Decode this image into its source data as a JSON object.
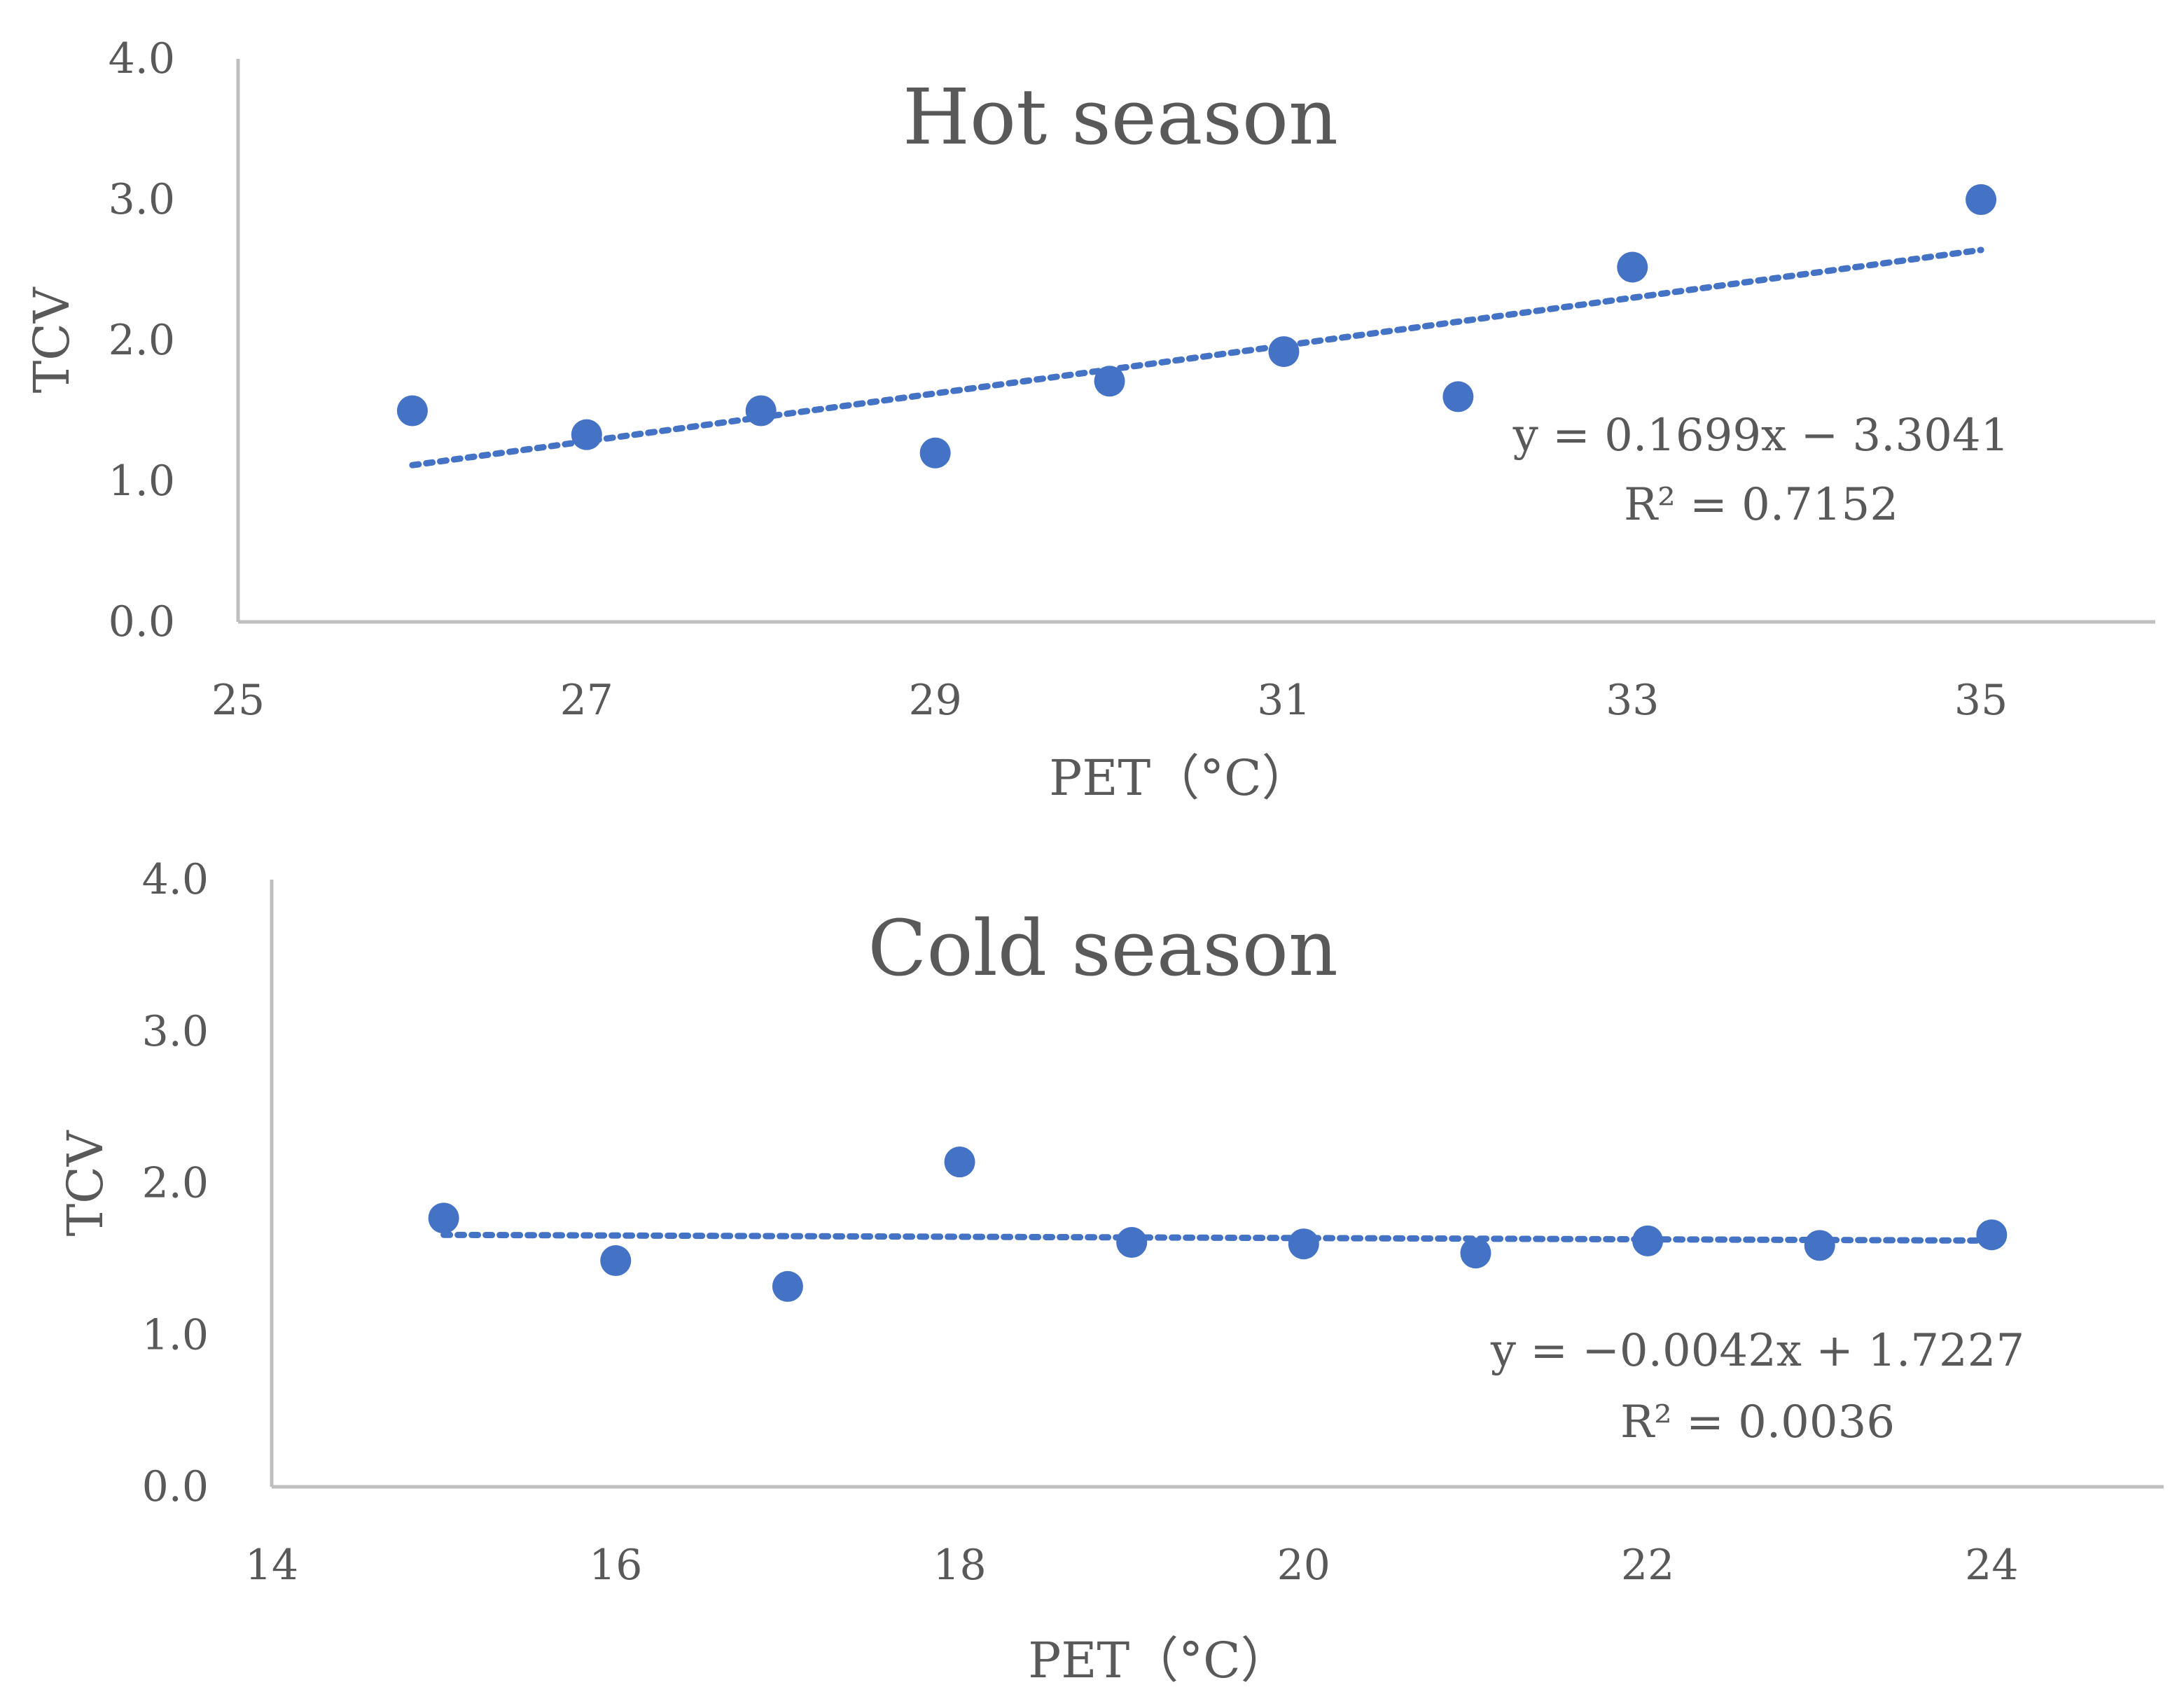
{
  "chart_data": [
    {
      "type": "scatter",
      "title": "Hot season",
      "xlabel": "PET（°C）",
      "ylabel": "TCV",
      "xlim": [
        25,
        36
      ],
      "ylim": [
        0,
        4
      ],
      "x_ticks": [
        "25",
        "27",
        "29",
        "31",
        "33",
        "35"
      ],
      "x_tick_values": [
        25,
        27,
        29,
        31,
        33,
        35
      ],
      "y_ticks": [
        "0.0",
        "1.0",
        "2.0",
        "3.0",
        "4.0"
      ],
      "y_tick_values": [
        0,
        1,
        2,
        3,
        4
      ],
      "series": [
        {
          "name": "TCV",
          "x": [
            26,
            27,
            28,
            29,
            30,
            31,
            32,
            33,
            35
          ],
          "y": [
            1.5,
            1.33,
            1.5,
            1.2,
            1.71,
            1.92,
            1.6,
            2.52,
            3.0
          ]
        }
      ],
      "trendline": {
        "type": "linear",
        "slope": 0.1699,
        "intercept": -3.3041,
        "x_range": [
          26,
          35
        ],
        "equation": "y = 0.1699x − 3.3041",
        "r_squared": "R² = 0.7152"
      },
      "grid": false
    },
    {
      "type": "scatter",
      "title": "Cold season",
      "xlabel": "PET（°C）",
      "ylabel": "TCV",
      "xlim": [
        14,
        25
      ],
      "ylim": [
        0,
        4
      ],
      "x_ticks": [
        "14",
        "16",
        "18",
        "20",
        "22",
        "24"
      ],
      "x_tick_values": [
        14,
        16,
        18,
        20,
        22,
        24
      ],
      "y_ticks": [
        "0.0",
        "1.0",
        "2.0",
        "3.0",
        "4.0"
      ],
      "y_tick_values": [
        0,
        1,
        2,
        3,
        4
      ],
      "series": [
        {
          "name": "TCV",
          "x": [
            15,
            16,
            17,
            18,
            19,
            20,
            21,
            22,
            23,
            24
          ],
          "y": [
            1.77,
            1.49,
            1.32,
            2.14,
            1.61,
            1.6,
            1.54,
            1.62,
            1.59,
            1.66
          ]
        }
      ],
      "trendline": {
        "type": "linear",
        "slope": -0.0042,
        "intercept": 1.7227,
        "x_range": [
          15,
          24
        ],
        "equation": "y = −0.0042x + 1.7227",
        "r_squared": "R² = 0.0036"
      },
      "grid": false
    }
  ]
}
